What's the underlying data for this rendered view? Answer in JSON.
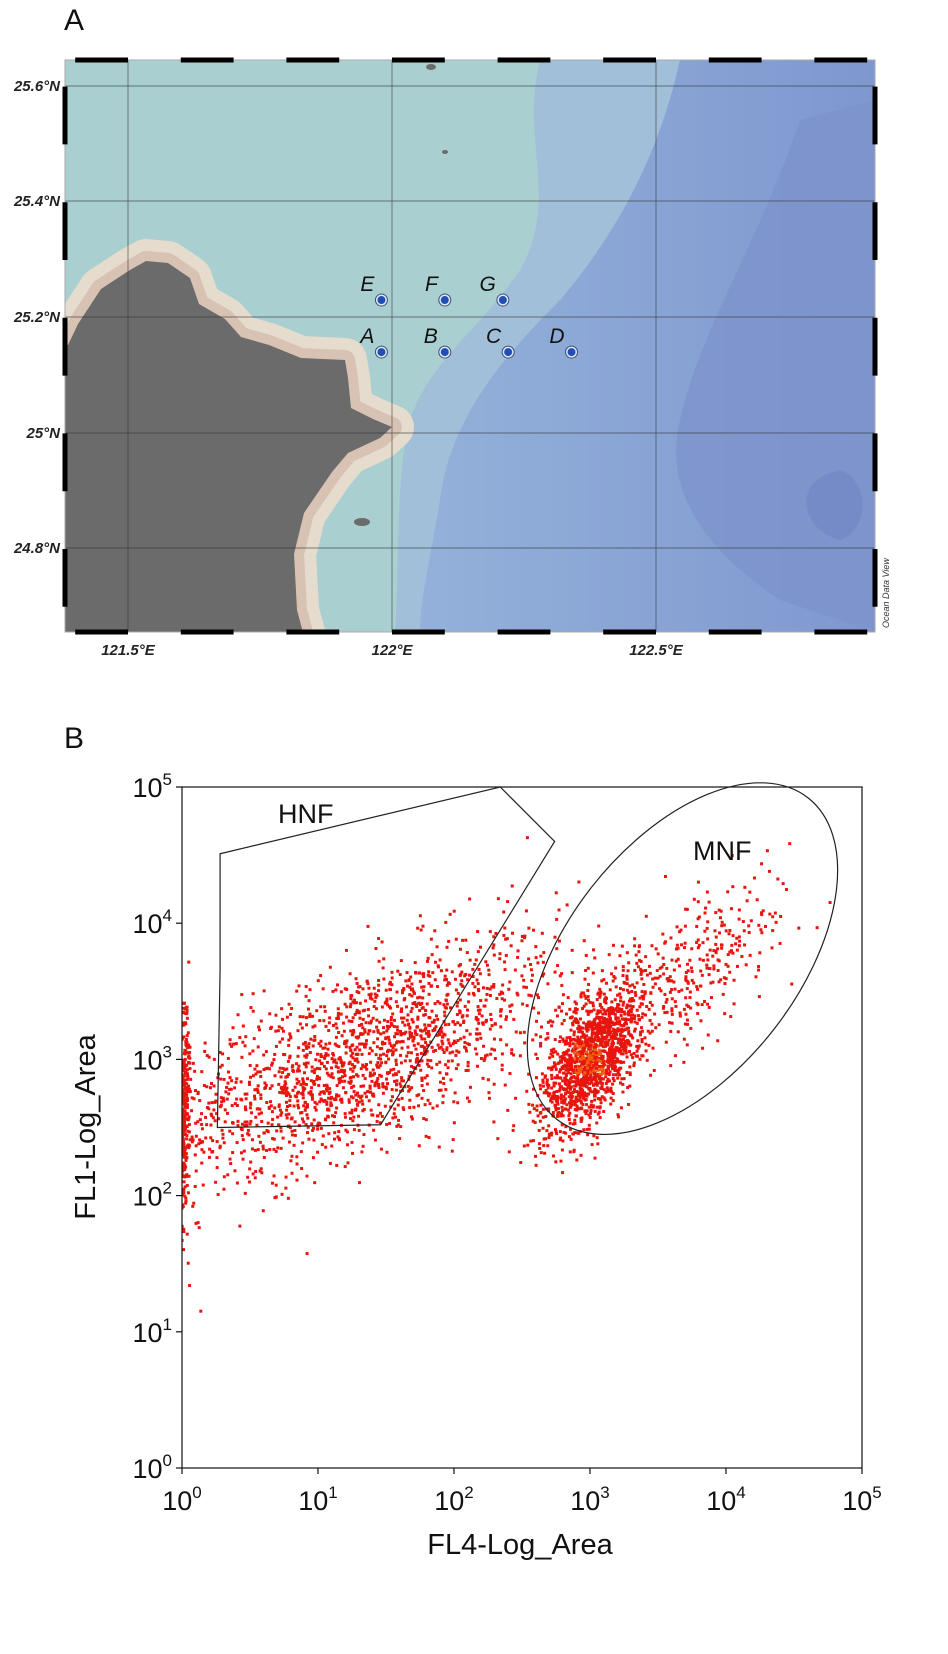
{
  "panels": {
    "a": "A",
    "b": "B"
  },
  "map": {
    "lat_labels": [
      "25.6°N",
      "25.4°N",
      "25.2°N",
      "25°N",
      "24.8°N"
    ],
    "lon_labels": [
      "121.5°E",
      "122°E",
      "122.5°E"
    ],
    "credit": "Ocean Data View",
    "station_color": "#1f4fb4",
    "stations": [
      {
        "label": "E",
        "lon": 121.98,
        "lat": 25.23
      },
      {
        "label": "F",
        "lon": 122.1,
        "lat": 25.23
      },
      {
        "label": "G",
        "lon": 122.21,
        "lat": 25.23
      },
      {
        "label": "A",
        "lon": 121.98,
        "lat": 25.14
      },
      {
        "label": "B",
        "lon": 122.1,
        "lat": 25.14
      },
      {
        "label": "C",
        "lon": 122.22,
        "lat": 25.14
      },
      {
        "label": "D",
        "lon": 122.34,
        "lat": 25.14
      }
    ]
  },
  "chart_data": {
    "type": "scatter",
    "xlabel": "FL4-Log_Area",
    "ylabel": "FL1-Log_Area",
    "xscale": "log",
    "yscale": "log",
    "xlim": [
      1,
      100000
    ],
    "ylim": [
      1,
      100000
    ],
    "x_ticks": [
      {
        "base": "10",
        "exp": "0"
      },
      {
        "base": "10",
        "exp": "1"
      },
      {
        "base": "10",
        "exp": "2"
      },
      {
        "base": "10",
        "exp": "3"
      },
      {
        "base": "10",
        "exp": "4"
      },
      {
        "base": "10",
        "exp": "5"
      }
    ],
    "y_ticks": [
      {
        "base": "10",
        "exp": "0"
      },
      {
        "base": "10",
        "exp": "1"
      },
      {
        "base": "10",
        "exp": "2"
      },
      {
        "base": "10",
        "exp": "3"
      },
      {
        "base": "10",
        "exp": "4"
      },
      {
        "base": "10",
        "exp": "5"
      }
    ],
    "point_color": "#e8150e",
    "dense_color": "#f0600c",
    "clusters_log10": [
      {
        "name": "broad",
        "n": 1800,
        "x_mean": 1.3,
        "x_sd": 0.75,
        "y_mean": 3.0,
        "y_sd": 0.33,
        "slope": 0.4
      },
      {
        "name": "mnf-core",
        "n": 1400,
        "x_mean": 3.0,
        "x_sd": 0.18,
        "y_mean": 3.0,
        "y_sd": 0.22,
        "slope": 0.8
      },
      {
        "name": "mnf-tail",
        "n": 350,
        "x_mean": 3.7,
        "x_sd": 0.4,
        "y_mean": 3.6,
        "y_sd": 0.25,
        "slope": 0.7
      },
      {
        "name": "edge",
        "n": 200,
        "x_mean": 0.02,
        "x_sd": 0.02,
        "y_mean": 2.8,
        "y_sd": 0.3,
        "slope": 0
      }
    ],
    "gates": [
      {
        "label": "HNF",
        "type": "polygon",
        "vertices_log10": [
          [
            0.28,
            4.51
          ],
          [
            2.34,
            5.0
          ],
          [
            2.74,
            4.6
          ],
          [
            1.46,
            2.52
          ],
          [
            0.26,
            2.5
          ],
          [
            0.28,
            3.65
          ]
        ]
      },
      {
        "label": "MNF",
        "type": "ellipse",
        "center_log10": [
          3.68,
          3.74
        ],
        "semi_axes_decades": [
          1.5,
          0.85
        ],
        "angle_deg": 52
      }
    ]
  }
}
